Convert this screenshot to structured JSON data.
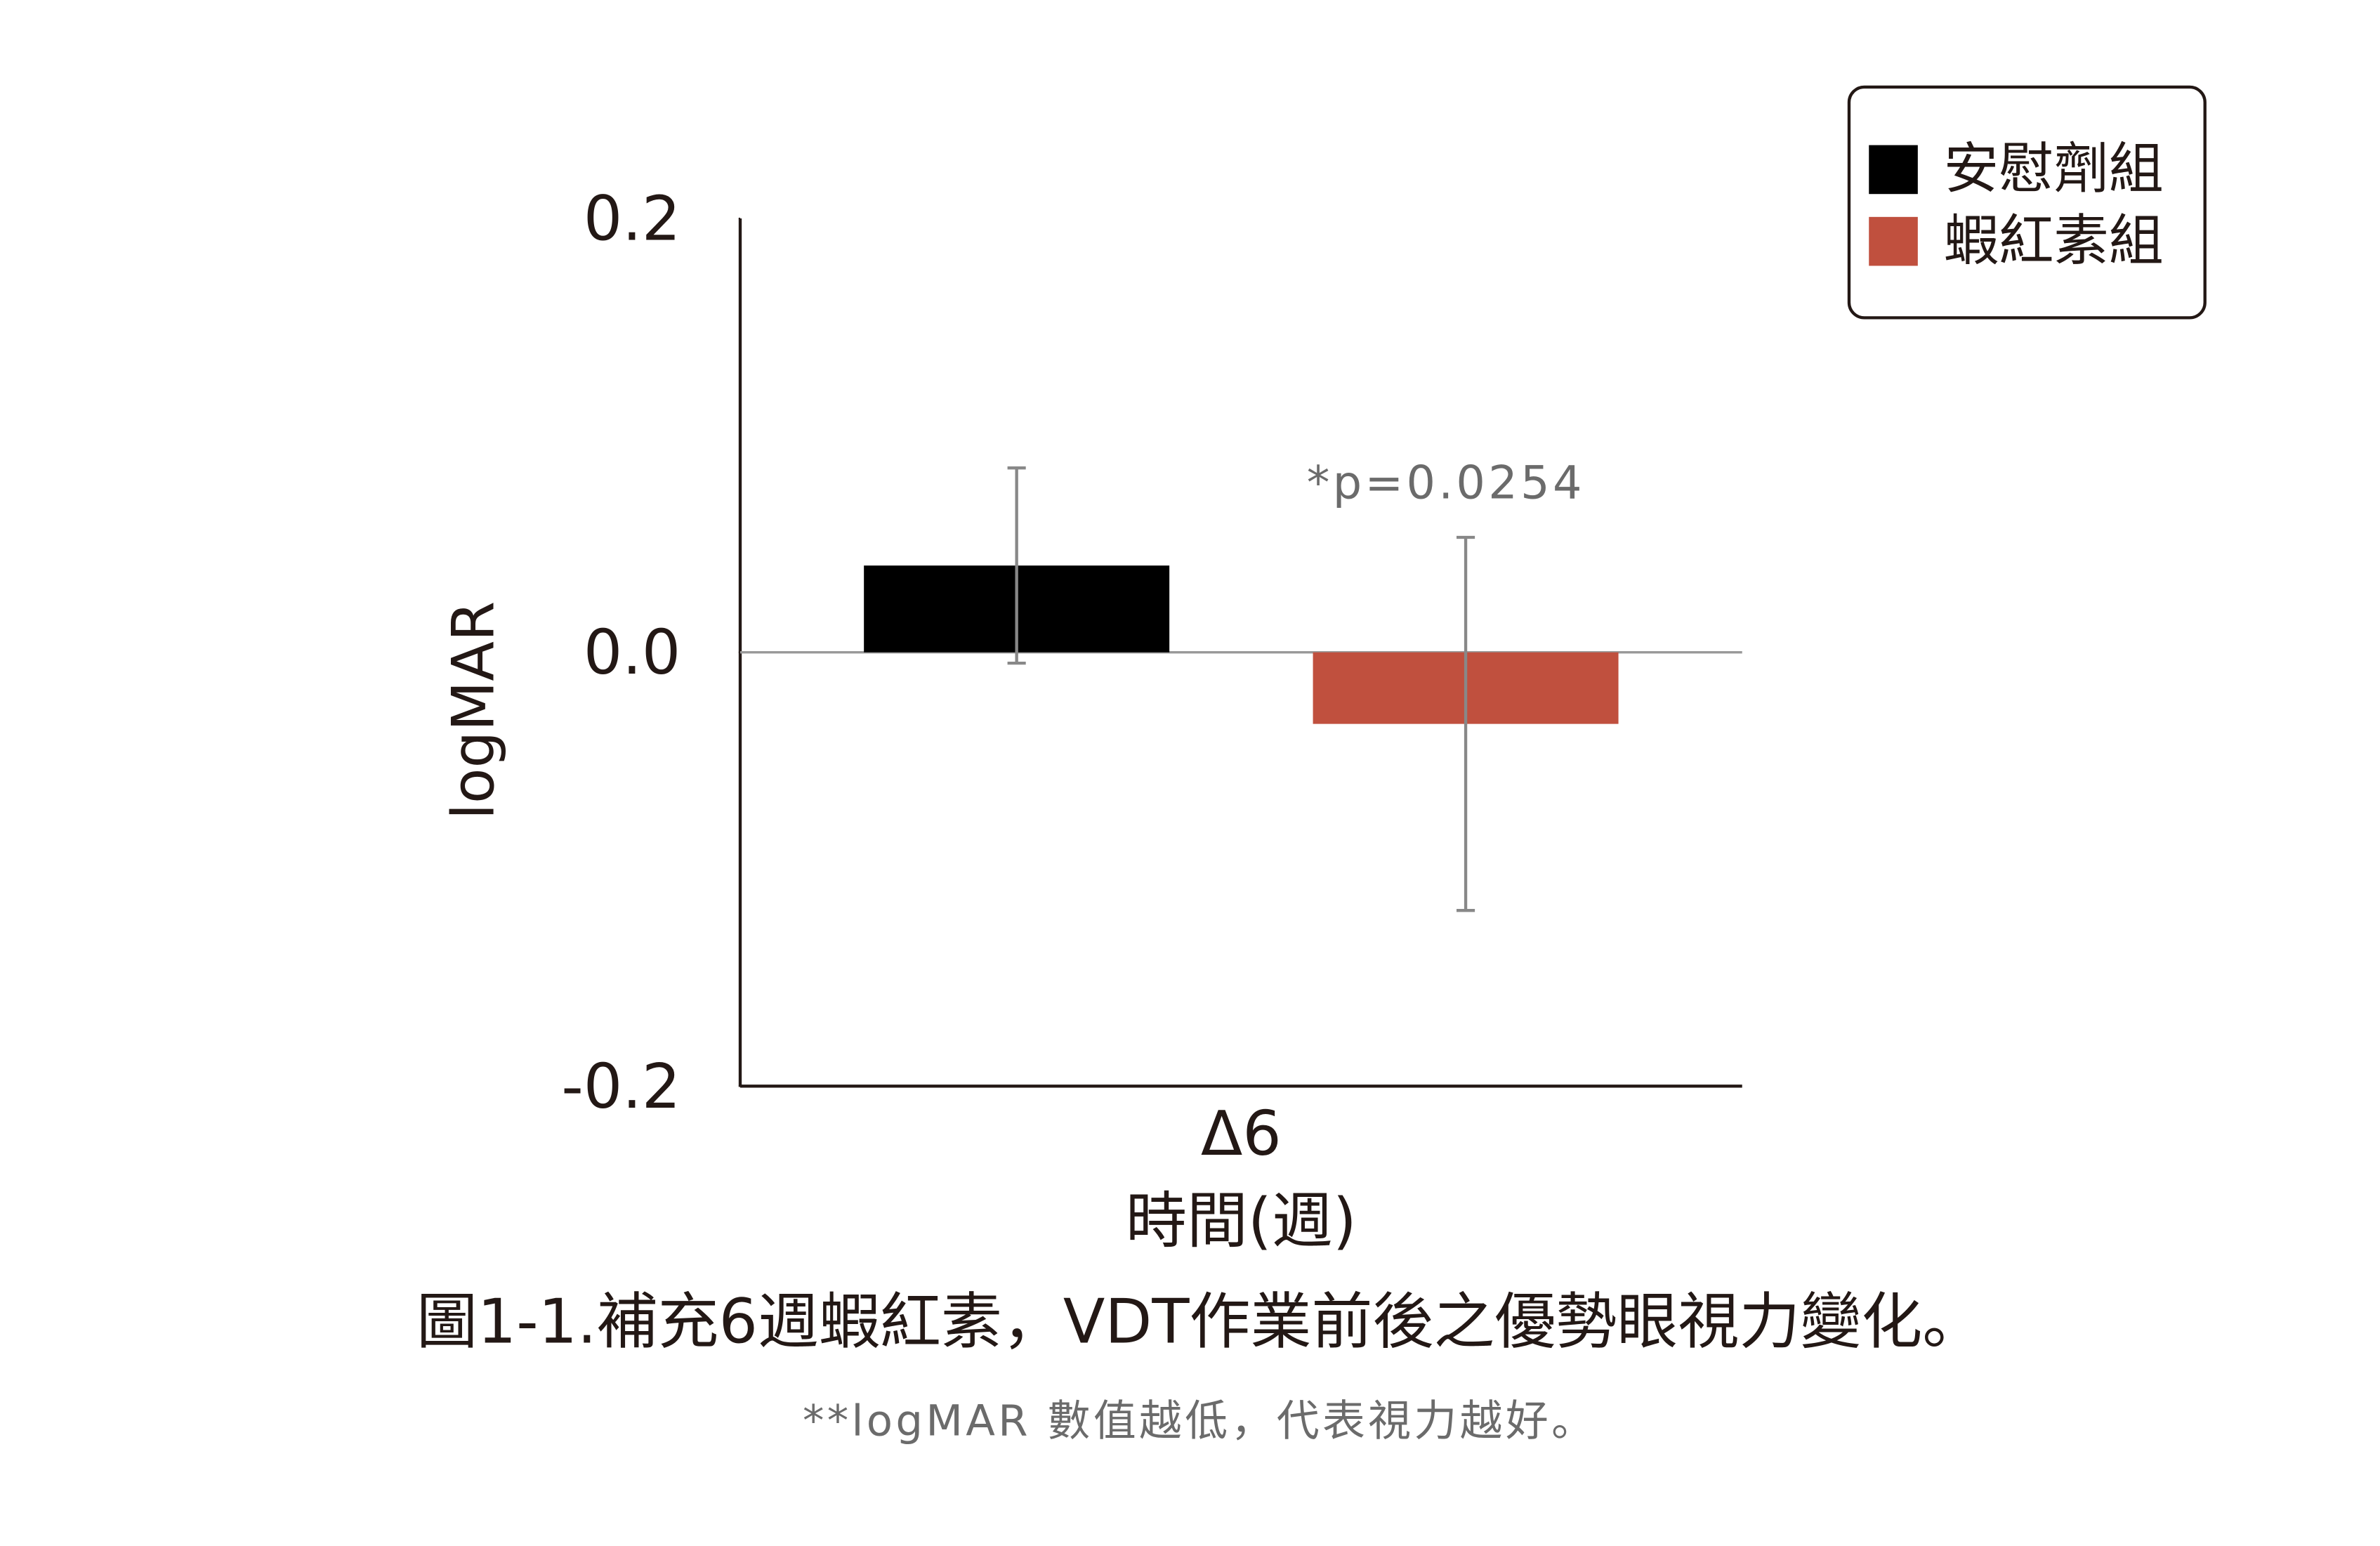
{
  "chart_data": {
    "type": "bar",
    "ylabel": "logMAR",
    "xlabel": "時間(週)",
    "categories": [
      "Δ6"
    ],
    "series": [
      {
        "name": "安慰劑組",
        "color": "#000000",
        "values": [
          0.04
        ],
        "errors": [
          0.045
        ]
      },
      {
        "name": "蝦紅素組",
        "color": "#c0503e",
        "values": [
          -0.033
        ],
        "errors": [
          0.086
        ]
      }
    ],
    "ylim": [
      -0.2,
      0.2
    ],
    "yticks": [
      -0.2,
      {
        "value": 0,
        "label": "0.0"
      },
      0.2
    ],
    "annotation": "*p=0.0254",
    "legend": "upper right",
    "caption": "圖1-1.補充6週蝦紅素，VDT作業前後之優勢眼視力變化。",
    "note": "**logMAR 數值越低，代表視力越好。"
  }
}
